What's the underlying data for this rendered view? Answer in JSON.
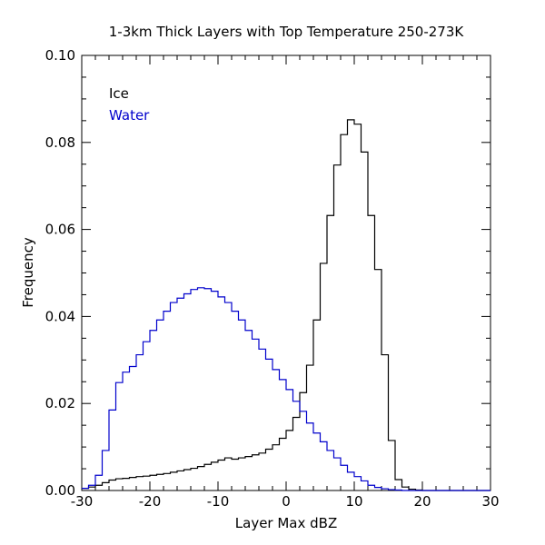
{
  "chart_data": {
    "type": "histogram",
    "title": "1-3km Thick Layers with Top Temperature 250-273K",
    "xlabel": "Layer Max dBZ",
    "ylabel": "Frequency",
    "xlim": [
      -30,
      30
    ],
    "ylim": [
      0,
      0.1
    ],
    "x_ticks": [
      -30,
      -20,
      -10,
      0,
      10,
      20,
      30
    ],
    "x_tick_labels": [
      "-30",
      "-20",
      "-10",
      "0",
      "10",
      "20",
      "30"
    ],
    "y_ticks": [
      0,
      0.02,
      0.04,
      0.06,
      0.08,
      0.1
    ],
    "y_tick_labels": [
      "0.00",
      "0.02",
      "0.04",
      "0.06",
      "0.08",
      "0.10"
    ],
    "legend_position": "top-left",
    "bin_edges": [
      -30,
      -29,
      -28,
      -27,
      -26,
      -25,
      -24,
      -23,
      -22,
      -21,
      -20,
      -19,
      -18,
      -17,
      -16,
      -15,
      -14,
      -13,
      -12,
      -11,
      -10,
      -9,
      -8,
      -7,
      -6,
      -5,
      -4,
      -3,
      -2,
      -1,
      0,
      1,
      2,
      3,
      4,
      5,
      6,
      7,
      8,
      9,
      10,
      11,
      12,
      13,
      14,
      15,
      16,
      17,
      18,
      19,
      20,
      21,
      22,
      23,
      24,
      25,
      26,
      27,
      28,
      29,
      30
    ],
    "series": [
      {
        "name": "Ice",
        "color": "#000000",
        "values": [
          0.0005,
          0.0008,
          0.0012,
          0.0018,
          0.0024,
          0.0027,
          0.0028,
          0.003,
          0.0032,
          0.0033,
          0.0035,
          0.0037,
          0.0039,
          0.0042,
          0.0045,
          0.0048,
          0.0051,
          0.0055,
          0.006,
          0.0065,
          0.007,
          0.0075,
          0.0072,
          0.0075,
          0.0078,
          0.0082,
          0.0086,
          0.0095,
          0.0105,
          0.012,
          0.0138,
          0.0168,
          0.0225,
          0.0288,
          0.0392,
          0.0522,
          0.0632,
          0.0748,
          0.0818,
          0.0852,
          0.0842,
          0.0778,
          0.0632,
          0.0508,
          0.0312,
          0.0115,
          0.0025,
          0.0008,
          0.0003,
          0.0001,
          0.0,
          0.0,
          0.0,
          0.0,
          0.0,
          0.0,
          0.0,
          0.0,
          0.0,
          0.0
        ]
      },
      {
        "name": "Water",
        "color": "#0000cc",
        "values": [
          0.0005,
          0.0012,
          0.0035,
          0.0092,
          0.0185,
          0.0248,
          0.0272,
          0.0285,
          0.0312,
          0.0342,
          0.0368,
          0.0392,
          0.0412,
          0.0432,
          0.0442,
          0.0452,
          0.0462,
          0.0466,
          0.0464,
          0.0458,
          0.0445,
          0.0432,
          0.0412,
          0.0392,
          0.0368,
          0.0348,
          0.0325,
          0.0302,
          0.0278,
          0.0255,
          0.0232,
          0.0205,
          0.0182,
          0.0155,
          0.0132,
          0.0112,
          0.0092,
          0.0075,
          0.0058,
          0.0042,
          0.0032,
          0.0022,
          0.0012,
          0.0007,
          0.0004,
          0.0002,
          0.0001,
          0.0,
          0.0,
          0.0,
          0.0,
          0.0,
          0.0,
          0.0,
          0.0,
          0.0,
          0.0,
          0.0,
          0.0,
          0.0
        ]
      }
    ]
  }
}
